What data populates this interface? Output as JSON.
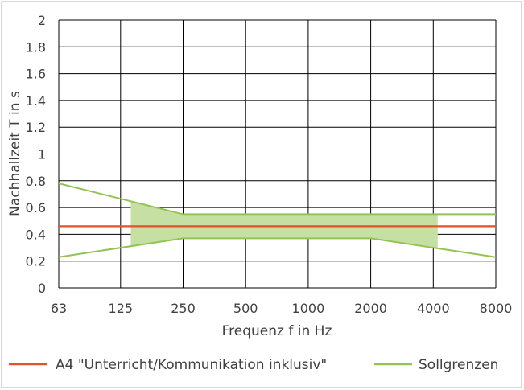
{
  "chart_data": {
    "type": "line",
    "title": "",
    "xlabel": "Frequenz f in Hz",
    "ylabel": "Nachhallzeit T in s",
    "ylim": [
      0,
      2
    ],
    "yticks": [
      "0",
      "0.2",
      "0.4",
      "0.6",
      "0.8",
      "1",
      "1.2",
      "1.4",
      "1.6",
      "1.8",
      "2"
    ],
    "categories": [
      "63",
      "125",
      "250",
      "500",
      "1000",
      "2000",
      "4000",
      "8000"
    ],
    "x_scale": "log2",
    "grid": true,
    "legend_position": "bottom",
    "series": [
      {
        "name": "A4 \"Unterricht/Kommunikation inklusiv\"",
        "color": "#e2522b",
        "x": [
          63,
          8000
        ],
        "y": [
          0.46,
          0.46
        ]
      },
      {
        "name": "Sollgrenzen",
        "color": "#92c353",
        "upper": {
          "x": [
            63,
            250,
            8000
          ],
          "y": [
            0.78,
            0.55,
            0.55
          ]
        },
        "lower": {
          "x": [
            63,
            250,
            2000,
            8000
          ],
          "y": [
            0.23,
            0.37,
            0.37,
            0.23
          ]
        }
      }
    ],
    "shaded_band": {
      "color": "#c6e0a4",
      "x": [
        140,
        250,
        4200
      ],
      "upper": [
        0.65,
        0.55,
        0.55
      ],
      "lower": [
        0.31,
        0.37,
        0.3
      ],
      "x_max_flat": 2000
    }
  }
}
